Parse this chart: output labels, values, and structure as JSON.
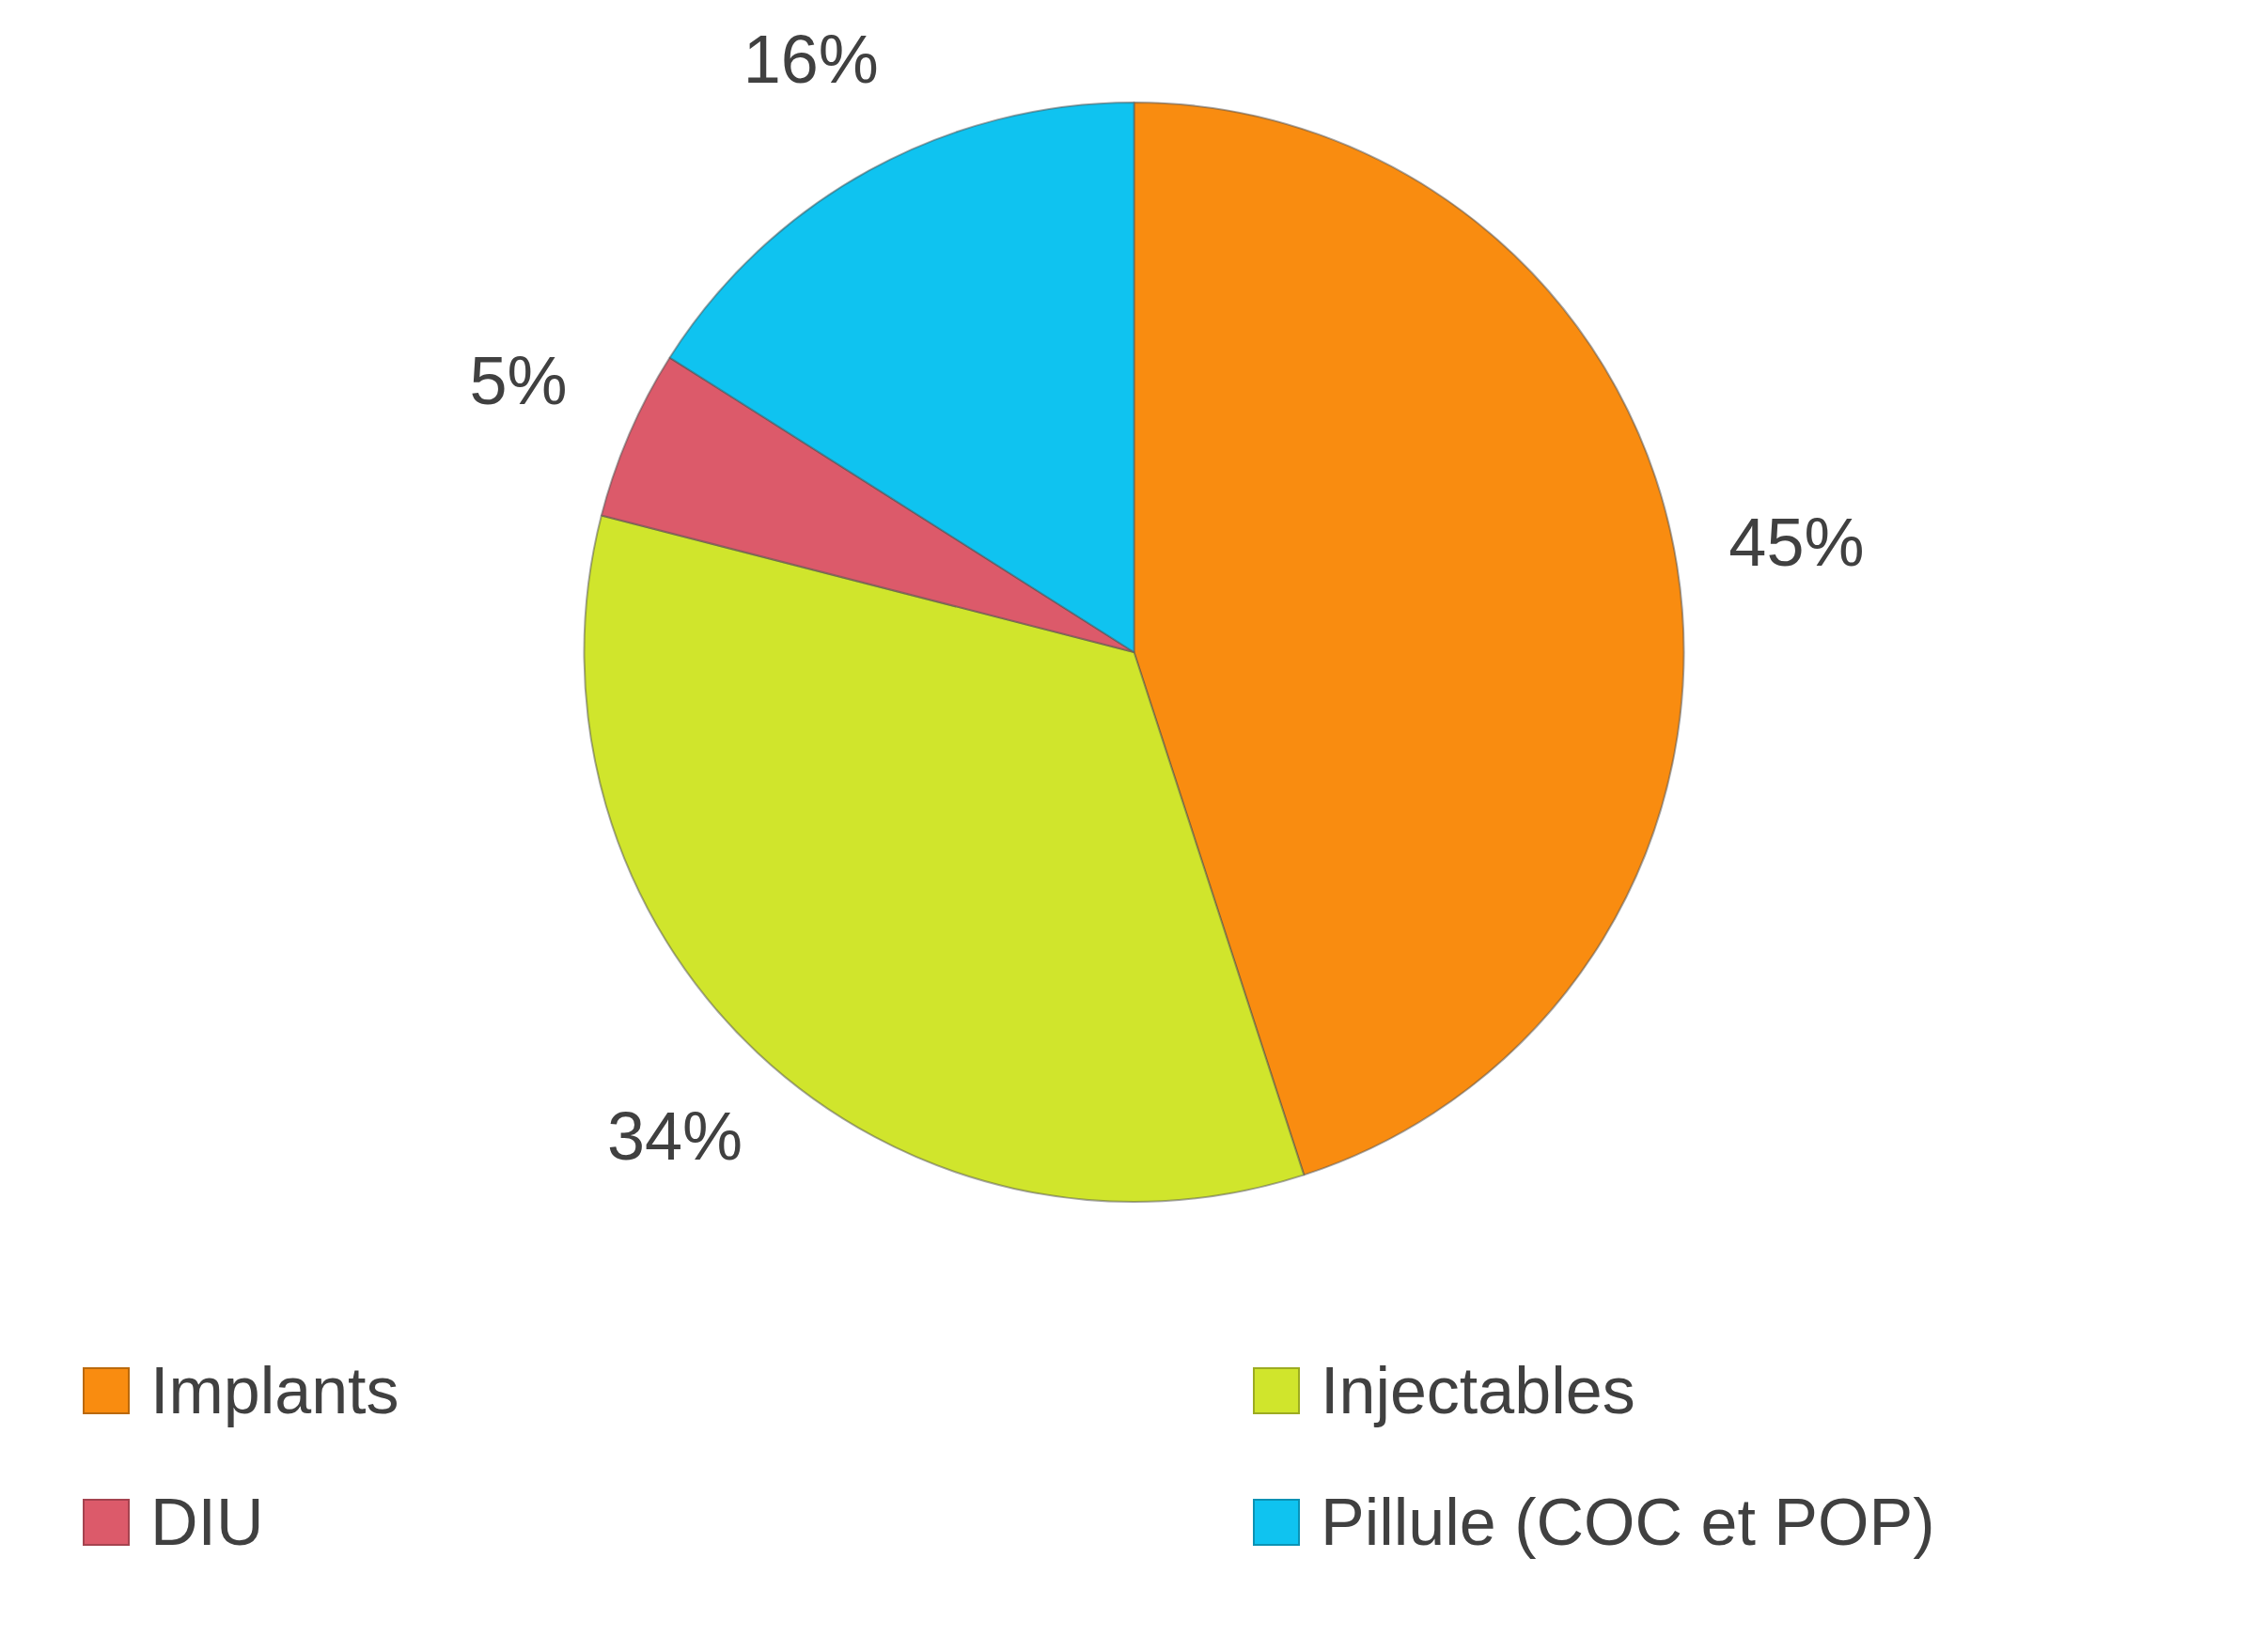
{
  "chart_data": {
    "type": "pie",
    "categories": [
      "Implants",
      "Injectables",
      "DIU",
      "Pillule (COC et POP)"
    ],
    "values": [
      45,
      34,
      5,
      16
    ],
    "colors": [
      "#f98c10",
      "#d0e52c",
      "#dc5a6a",
      "#0fc3f0"
    ],
    "value_labels": [
      "45%",
      "34%",
      "5%",
      "16%"
    ],
    "legend": "bottom"
  }
}
